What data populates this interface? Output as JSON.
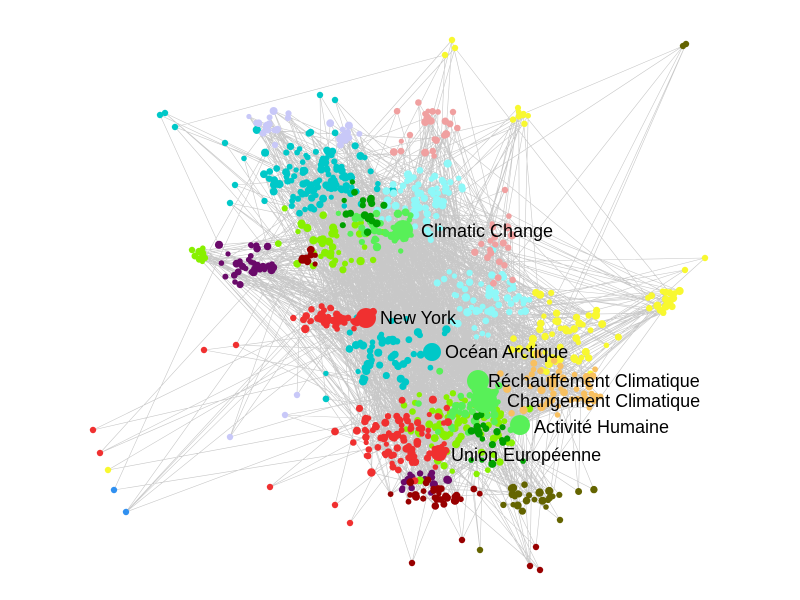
{
  "graph": {
    "edge_color": "#c8c8c8",
    "communities": [
      {
        "id": "cyan",
        "color": "#00c8c8"
      },
      {
        "id": "light-cyan",
        "color": "#8ef8f8"
      },
      {
        "id": "lavender",
        "color": "#c8c8f8"
      },
      {
        "id": "purple",
        "color": "#6a0a6a"
      },
      {
        "id": "lime",
        "color": "#88f000"
      },
      {
        "id": "green",
        "color": "#58f058"
      },
      {
        "id": "dark-green",
        "color": "#00a000"
      },
      {
        "id": "red",
        "color": "#f03030"
      },
      {
        "id": "dark-red",
        "color": "#980000"
      },
      {
        "id": "pink",
        "color": "#f0a0a0"
      },
      {
        "id": "yellow",
        "color": "#f8f830"
      },
      {
        "id": "orange",
        "color": "#f8c060"
      },
      {
        "id": "olive",
        "color": "#646400"
      },
      {
        "id": "blue",
        "color": "#3090f0"
      }
    ],
    "hubs": [
      {
        "label": "Climatic Change",
        "community": "green"
      },
      {
        "label": "New York",
        "community": "red"
      },
      {
        "label": "Océan Arctique",
        "community": "cyan"
      },
      {
        "label": "Réchauffement Climatique",
        "community": "green"
      },
      {
        "label": "Changement Climatique",
        "community": "green"
      },
      {
        "label": "Activité Humaine",
        "community": "green"
      },
      {
        "label": "Union Européenne",
        "community": "red"
      }
    ]
  }
}
